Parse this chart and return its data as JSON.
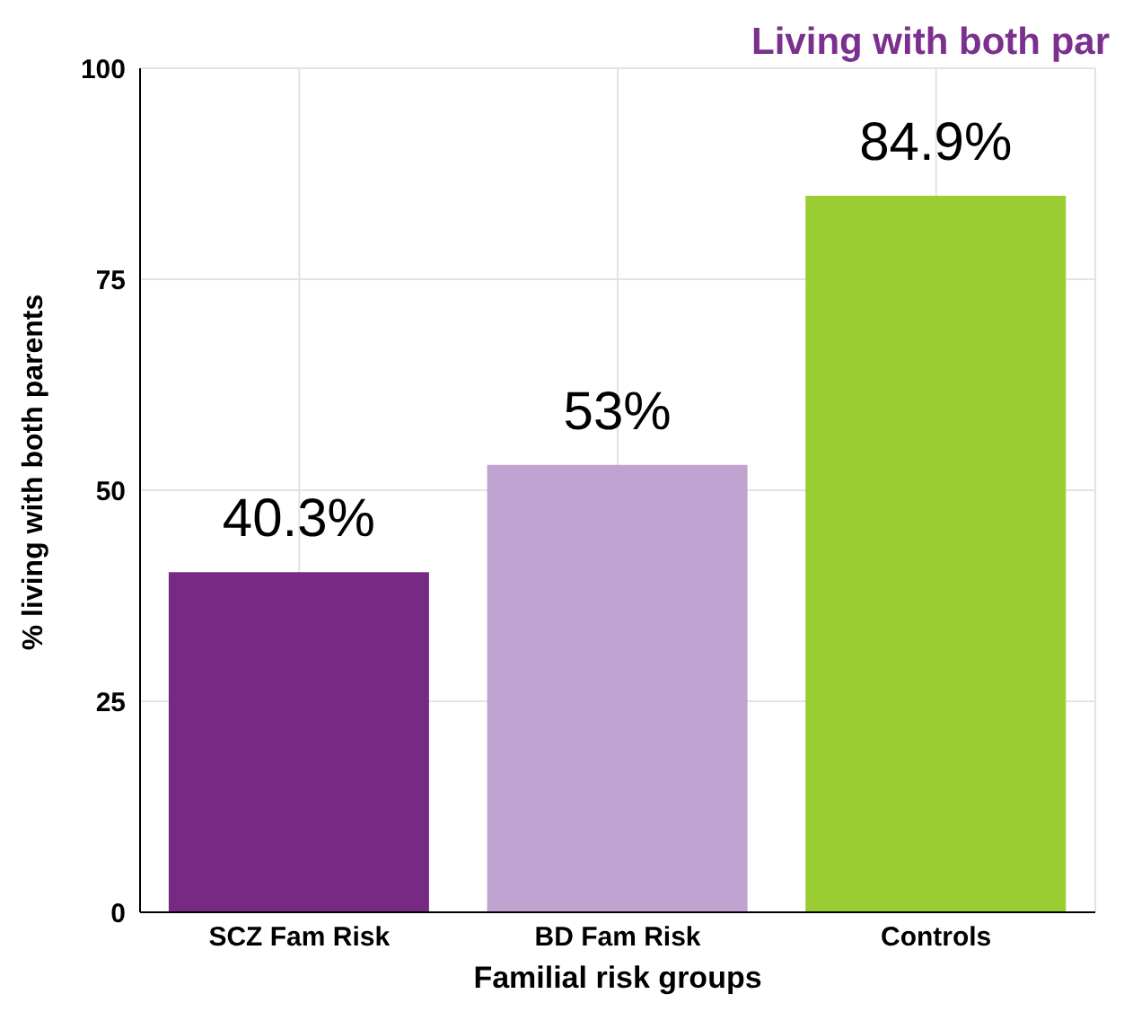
{
  "chart_data": {
    "type": "bar",
    "title": "Living with both par",
    "xlabel": "Familial risk groups",
    "ylabel": "% living with both parents",
    "categories": [
      "SCZ Fam Risk",
      "BD Fam Risk",
      "Controls"
    ],
    "values": [
      40.3,
      53,
      84.9
    ],
    "colors": [
      "#772a84",
      "#c0a3d0",
      "#9acd32"
    ],
    "value_labels": [
      "40.3%",
      "53%",
      "84.9%"
    ],
    "ylim": [
      0,
      100
    ],
    "yticks": [
      0,
      25,
      50,
      75,
      100
    ],
    "grid": true
  }
}
